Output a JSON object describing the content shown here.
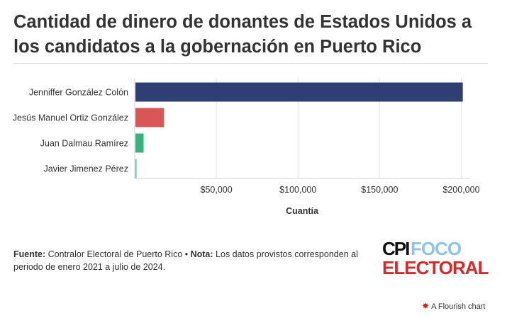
{
  "chart_data": {
    "type": "bar",
    "orientation": "horizontal",
    "title": "Cantidad de dinero de donantes de Estados Unidos a los candidatos a la gobernación en Puerto Rico",
    "categories": [
      "Jenniffer González Colón",
      "Jesús Manuel Ortiz González",
      "Juan Dalmau Ramírez",
      "Javier Jimenez Pérez"
    ],
    "values": [
      200500,
      17500,
      5000,
      500
    ],
    "colors": [
      "#2e3f73",
      "#d95656",
      "#36b37e",
      "#3fb8c4"
    ],
    "xlabel": "Cuantía",
    "ylabel": "",
    "xlim": [
      0,
      205000
    ],
    "xticks": [
      50000,
      100000,
      150000,
      200000
    ],
    "xtick_labels": [
      "$50,000",
      "$100,000",
      "$150,000",
      "$200,000"
    ],
    "grid": true
  },
  "footer": {
    "source_label": "Fuente:",
    "source_text": " Contralor Electoral de Puerto Rico • ",
    "note_label": "Nota:",
    "note_text": " Los datos provistos corresponden al periodo de enero 2021 a julio de 2024."
  },
  "logo": {
    "part1": "CPI",
    "part2": "FOCO",
    "part3": "ELECTORAL",
    "colors": {
      "cpi": "#111111",
      "foco": "#8fc4e8",
      "electoral": "#d42a2a"
    }
  },
  "credit": {
    "icon": "flourish-star-icon",
    "text": "A Flourish chart"
  }
}
